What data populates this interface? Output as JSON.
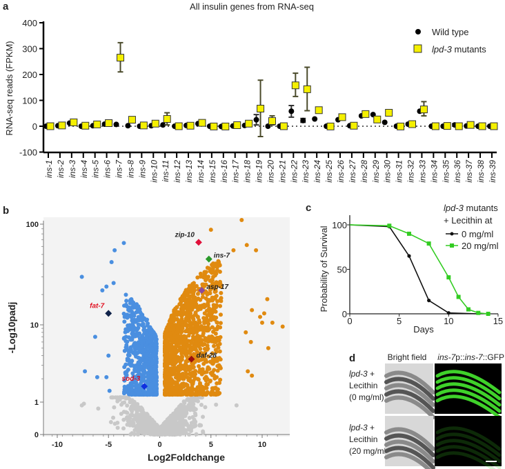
{
  "panel_labels": {
    "a": "a",
    "b": "b",
    "c": "c",
    "d": "d"
  },
  "colors": {
    "wt": "#000000",
    "mutant_fill": "#f5f000",
    "errbar": "#4a4a2a",
    "down": "#4a8fe0",
    "up": "#e08a10",
    "ns": "#c8c8c8",
    "c_black": "#111111",
    "c_green": "#33cc22",
    "gfp": "#3fd12a"
  },
  "chart_data": [
    {
      "type": "scatter",
      "title": "All insulin genes from RNA-seq",
      "ylabel": "RNA-seq reads (FPKM)",
      "xlabel": "",
      "ylim": [
        -100,
        400
      ],
      "yticks": [
        "400",
        "300",
        "200",
        "100",
        "0",
        "-100"
      ],
      "ytick_values": [
        400,
        300,
        200,
        100,
        0,
        -100
      ],
      "legend": {
        "placement": "top-right",
        "wt": "Wild type",
        "mut_italic": "lpd-3",
        "mut_rest": " mutants"
      },
      "categories": [
        "ins-1",
        "ins-2",
        "ins-3",
        "ins-4",
        "ins-5",
        "ins-6",
        "ins-7",
        "ins-8",
        "ins-9",
        "ins-10",
        "ins-11",
        "ins-12",
        "ins-13",
        "ins-14",
        "ins-15",
        "ins-16",
        "ins-17",
        "ins-18",
        "ins-19",
        "ins-20",
        "ins-21",
        "ins-22",
        "ins-23",
        "ins-24",
        "ins-25",
        "ins-26",
        "ins-27",
        "ins-28",
        "ins-29",
        "ins-30",
        "ins-31",
        "ins-32",
        "ins-33",
        "ins-34",
        "ins-35",
        "ins-36",
        "ins-37",
        "ins-38",
        "ins-39"
      ],
      "series": [
        {
          "name": "Wild type",
          "values": [
            0,
            2,
            12,
            0,
            2,
            8,
            7,
            2,
            0,
            2,
            5,
            0,
            3,
            10,
            0,
            -1,
            1,
            3,
            25,
            0,
            0,
            58,
            22,
            28,
            0,
            25,
            2,
            40,
            45,
            15,
            0,
            8,
            58,
            0,
            0,
            5,
            1,
            0,
            0
          ],
          "err_low": [
            null,
            null,
            null,
            null,
            null,
            null,
            null,
            null,
            null,
            null,
            null,
            null,
            null,
            null,
            null,
            null,
            null,
            null,
            5,
            null,
            null,
            35,
            15,
            null,
            null,
            null,
            null,
            null,
            null,
            null,
            null,
            null,
            null,
            null,
            null,
            0,
            null,
            null,
            null
          ],
          "err_high": [
            null,
            null,
            null,
            null,
            null,
            null,
            null,
            null,
            null,
            null,
            null,
            null,
            null,
            null,
            null,
            null,
            null,
            null,
            45,
            null,
            null,
            80,
            30,
            null,
            null,
            null,
            null,
            null,
            null,
            null,
            null,
            null,
            null,
            null,
            null,
            10,
            null,
            null,
            null
          ]
        },
        {
          "name": "lpd-3 mutants",
          "values": [
            0,
            3,
            15,
            2,
            7,
            12,
            265,
            25,
            3,
            10,
            28,
            0,
            2,
            13,
            -1,
            -1,
            4,
            10,
            68,
            20,
            0,
            158,
            143,
            62,
            -1,
            35,
            2,
            47,
            26,
            52,
            -1,
            8,
            65,
            0,
            1,
            0,
            5,
            0,
            0
          ],
          "err_low": [
            null,
            null,
            null,
            null,
            null,
            null,
            210,
            null,
            null,
            null,
            5,
            null,
            null,
            null,
            null,
            null,
            null,
            null,
            -40,
            5,
            null,
            115,
            60,
            null,
            null,
            null,
            null,
            null,
            null,
            null,
            null,
            null,
            40,
            null,
            null,
            null,
            null,
            null,
            null
          ],
          "err_high": [
            null,
            null,
            null,
            null,
            null,
            null,
            323,
            null,
            null,
            null,
            52,
            null,
            null,
            null,
            null,
            null,
            null,
            null,
            178,
            40,
            null,
            205,
            228,
            null,
            null,
            null,
            null,
            null,
            null,
            null,
            null,
            null,
            95,
            null,
            null,
            null,
            null,
            null,
            null
          ]
        }
      ]
    },
    {
      "type": "scatter",
      "title": "",
      "xlabel": "Log2Foldchange",
      "ylabel": "-Log10padj",
      "xlim": [
        -11,
        12.5
      ],
      "xticks": [
        "-10",
        "-5",
        "0",
        "5",
        "10"
      ],
      "xtick_values": [
        -10,
        -5,
        0,
        5,
        10
      ],
      "yticks": [
        "100",
        "10",
        "1",
        "0"
      ],
      "ytick_values": [
        100,
        10,
        1,
        0
      ],
      "highlighted": [
        {
          "gene": "zip-10",
          "x": 3.8,
          "y": 66,
          "color": "#e0103a",
          "label_color": "#222222"
        },
        {
          "gene": "ins-7",
          "x": 4.8,
          "y": 45,
          "color": "#2a9a2a",
          "label_color": "#222222"
        },
        {
          "gene": "asp-17",
          "x": 4.1,
          "y": 22,
          "color": "#8a4aa0",
          "label_color": "#222222"
        },
        {
          "gene": "fat-7",
          "x": -5.0,
          "y": 13,
          "color": "#10234a",
          "label_color": "#e01020"
        },
        {
          "gene": "daf-28",
          "x": 3.1,
          "y": 3.6,
          "color": "#9a1010",
          "label_color": "#222222"
        },
        {
          "gene": "sod-3",
          "x": -1.5,
          "y": 1.6,
          "color": "#1030e0",
          "label_color": "#e01020"
        }
      ],
      "outliers_up": [
        [
          8,
          110
        ],
        [
          5,
          88
        ],
        [
          8.5,
          62
        ],
        [
          9.4,
          55
        ],
        [
          7.2,
          55
        ],
        [
          10.5,
          18
        ],
        [
          11,
          10.5
        ],
        [
          12,
          9.5
        ],
        [
          10,
          10.5
        ],
        [
          10.2,
          13
        ],
        [
          9.8,
          12
        ],
        [
          10.6,
          5
        ],
        [
          9,
          2.2
        ],
        [
          8.6,
          2.5
        ],
        [
          8.9,
          6
        ],
        [
          8.4,
          8
        ],
        [
          9,
          14
        ]
      ],
      "outliers_down": [
        [
          -3.5,
          65
        ],
        [
          -4.4,
          55
        ],
        [
          -4.7,
          42
        ],
        [
          -7.6,
          30
        ],
        [
          -5.2,
          24
        ],
        [
          -5.6,
          22
        ],
        [
          -4.5,
          26
        ],
        [
          -6.3,
          7
        ],
        [
          -7.3,
          2.5
        ],
        [
          -6.1,
          2.1
        ],
        [
          -5.2,
          2.1
        ],
        [
          -5,
          4
        ],
        [
          -4.9,
          1.4
        ]
      ],
      "ns_outliers": [
        [
          -7.6,
          0.9
        ],
        [
          -7.4,
          0.95
        ],
        [
          -6,
          0.8
        ],
        [
          7.5,
          0.9
        ],
        [
          5.5,
          0.92
        ]
      ]
    },
    {
      "type": "line",
      "title": "",
      "xlabel": "Days",
      "ylabel": "Probability of Survival",
      "xlim": [
        0,
        15
      ],
      "ylim": [
        0,
        110
      ],
      "xticks": [
        "0",
        "5",
        "10",
        "15"
      ],
      "xtick_values": [
        0,
        5,
        10,
        15
      ],
      "yticks": [
        "100",
        "50",
        "0"
      ],
      "ytick_values": [
        100,
        50,
        0
      ],
      "legend": {
        "placement": "top-right",
        "title_italic": "lpd-3",
        "title_rest": " mutants",
        "title2": "+ Lecithin at"
      },
      "series": [
        {
          "name": "0 mg/ml",
          "x": [
            0,
            4,
            6,
            8,
            10,
            13
          ],
          "y": [
            100,
            98,
            65,
            15,
            1,
            0
          ],
          "markers": [
            4,
            6,
            8,
            10
          ]
        },
        {
          "name": "20 mg/ml",
          "x": [
            0,
            4,
            6,
            8,
            10,
            11,
            12,
            13,
            14
          ],
          "y": [
            100,
            99,
            90,
            79,
            41,
            19,
            5,
            1,
            0
          ],
          "markers": [
            4,
            6,
            8,
            10,
            11,
            12,
            13,
            14
          ]
        }
      ]
    }
  ],
  "panel_d": {
    "col1": "Bright field",
    "col2_italic": "ins-7",
    "col2_rest": "p::",
    "col2_italic2": "ins-7",
    "col2_end": "::GFP",
    "rows": [
      {
        "l1_italic": "lpd-3",
        "l1_rest": " +",
        "l2": "Lecithin",
        "l3": "(0 mg/ml)",
        "gfp_intensity": 1.0
      },
      {
        "l1_italic": "lpd-3",
        "l1_rest": " +",
        "l2": "Lecithin",
        "l3": "(20 mg/ml)",
        "gfp_intensity": 0.2
      }
    ]
  }
}
